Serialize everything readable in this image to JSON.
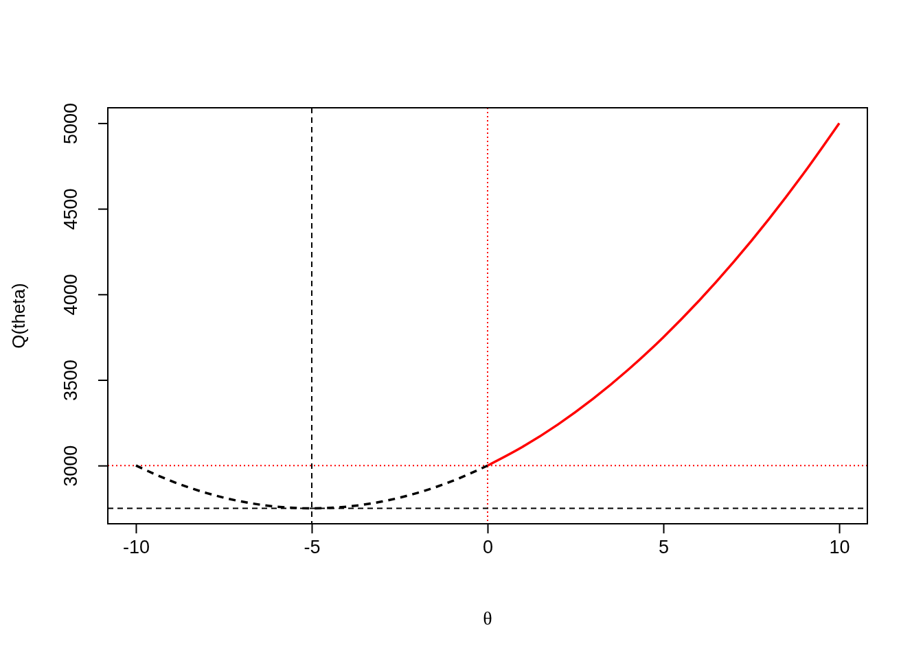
{
  "chart_data": {
    "type": "line",
    "xlabel": "θ",
    "ylabel": "Q(theta)",
    "xlim": [
      -10.8,
      10.8
    ],
    "ylim": [
      2660,
      5090
    ],
    "xticks": [
      -10,
      -5,
      0,
      5,
      10
    ],
    "yticks": [
      3000,
      3500,
      4000,
      4500,
      5000
    ],
    "series": [
      {
        "color": "#000000",
        "line_style": "dashed",
        "x": [
          -10,
          -9,
          -8,
          -7,
          -6,
          -5,
          -4,
          -3,
          -2,
          -1,
          0
        ],
        "values": [
          3000,
          2910,
          2840,
          2790,
          2760,
          2750,
          2760,
          2790,
          2840,
          2910,
          3000
        ]
      },
      {
        "color": "#ff0000",
        "line_style": "solid",
        "x": [
          0,
          1,
          2,
          3,
          4,
          5,
          6,
          7,
          8,
          9,
          10
        ],
        "values": [
          3000,
          3110,
          3240,
          3390,
          3560,
          3750,
          3960,
          4190,
          4440,
          4710,
          5000
        ]
      }
    ],
    "ref_lines": [
      {
        "axis": "x",
        "value": -5,
        "color": "#000000",
        "line_style": "dashed"
      },
      {
        "axis": "x",
        "value": 0,
        "color": "#ff0000",
        "line_style": "dotted"
      },
      {
        "axis": "y",
        "value": 3000,
        "color": "#ff0000",
        "line_style": "dotted"
      },
      {
        "axis": "y",
        "value": 2750,
        "color": "#000000",
        "line_style": "dashed"
      }
    ]
  }
}
